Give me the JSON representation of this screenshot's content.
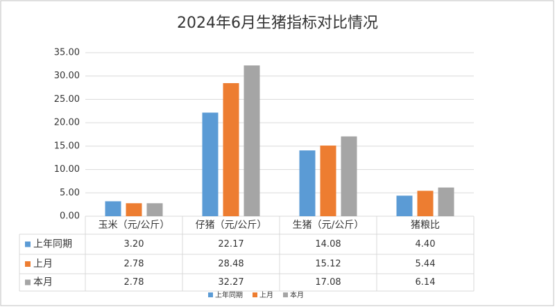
{
  "chart_data": {
    "type": "bar",
    "title": "2024年6月生猪指标对比情况",
    "categories": [
      "玉米（元/公斤）",
      "仔猪（元/公斤）",
      "生猪（元/公斤）",
      "猪粮比"
    ],
    "series": [
      {
        "name": "上年同期",
        "color": "#5b9bd5",
        "values": [
          3.2,
          22.17,
          14.08,
          4.4
        ],
        "value_labels": [
          "3.20",
          "22.17",
          "14.08",
          "4.40"
        ]
      },
      {
        "name": "上月",
        "color": "#ed7d31",
        "values": [
          2.78,
          28.48,
          15.12,
          5.44
        ],
        "value_labels": [
          "2.78",
          "28.48",
          "15.12",
          "5.44"
        ]
      },
      {
        "name": "本月",
        "color": "#a5a5a5",
        "values": [
          2.78,
          32.27,
          17.08,
          6.14
        ],
        "value_labels": [
          "2.78",
          "32.27",
          "17.08",
          "6.14"
        ]
      }
    ],
    "ylim": [
      0,
      35
    ],
    "yticks": [
      {
        "value": 0,
        "label": "0.00"
      },
      {
        "value": 5,
        "label": "5.00"
      },
      {
        "value": 10,
        "label": "10.00"
      },
      {
        "value": 15,
        "label": "15.00"
      },
      {
        "value": 20,
        "label": "20.00"
      },
      {
        "value": 25,
        "label": "25.00"
      },
      {
        "value": 30,
        "label": "30.00"
      },
      {
        "value": 35,
        "label": "35.00"
      }
    ],
    "grid": true
  }
}
